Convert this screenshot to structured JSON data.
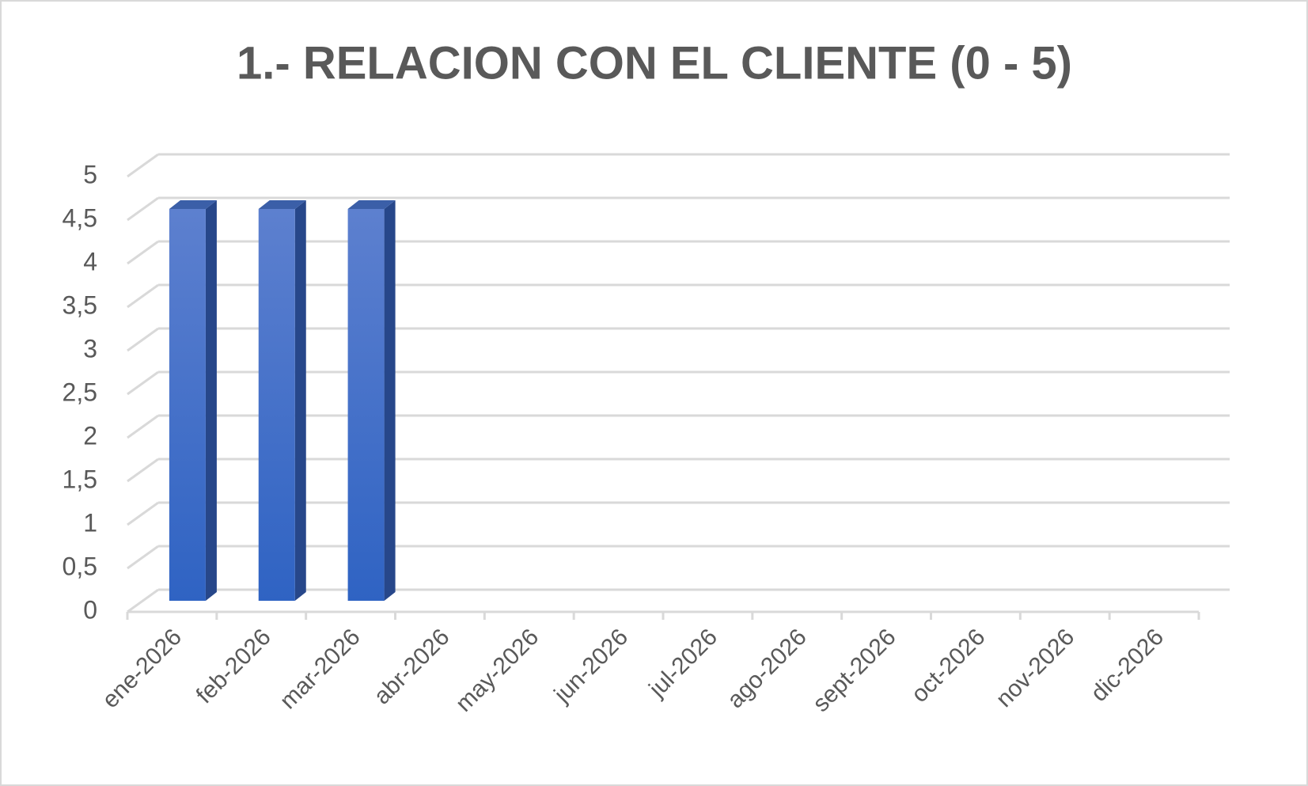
{
  "chart_data": {
    "type": "bar",
    "title": "1.- RELACION CON EL CLIENTE (0 - 5)",
    "categories": [
      "ene-2026",
      "feb-2026",
      "mar-2026",
      "abr-2026",
      "may-2026",
      "jun-2026",
      "jul-2026",
      "ago-2026",
      "sept-2026",
      "oct-2026",
      "nov-2026",
      "dic-2026"
    ],
    "values": [
      4.5,
      4.5,
      4.5,
      null,
      null,
      null,
      null,
      null,
      null,
      null,
      null,
      null
    ],
    "color": "#3a6bc9",
    "ylim": [
      0,
      5
    ],
    "yticks": [
      0,
      {
        "value": 0.5,
        "label": "0,5"
      },
      1,
      {
        "value": 1.5,
        "label": "1,5"
      },
      2,
      {
        "value": 2.5,
        "label": "2,5"
      },
      3,
      {
        "value": 3.5,
        "label": "3,5"
      },
      4,
      {
        "value": 4.5,
        "label": "4,5"
      },
      5
    ],
    "grid": true
  }
}
